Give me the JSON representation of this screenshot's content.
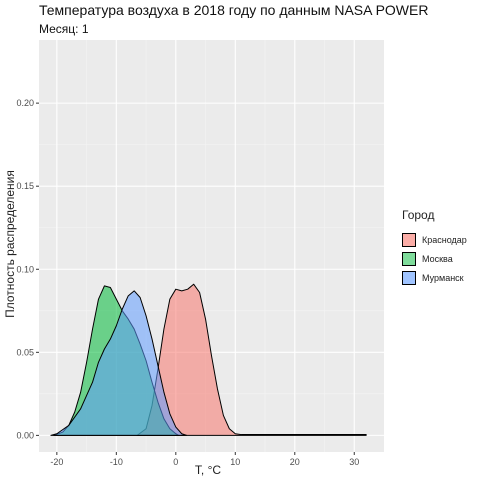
{
  "title": "Температура воздуха в 2018 году по данным NASA POWER",
  "subtitle": "Месяц: 1",
  "chart_data": {
    "type": "area",
    "title": "Температура воздуха в 2018 году по данным NASA POWER",
    "subtitle": "Месяц: 1",
    "xlabel": "T, °C",
    "ylabel": "Плотность распределения",
    "xlim": [
      -23,
      35
    ],
    "ylim": [
      -0.01,
      0.238
    ],
    "x_ticks": [
      -20,
      -10,
      0,
      10,
      20,
      30
    ],
    "x_tick_labels": [
      "-20",
      "-10",
      "0",
      "10",
      "20",
      "30"
    ],
    "y_ticks": [
      0.0,
      0.05,
      0.1,
      0.15,
      0.2
    ],
    "y_tick_labels": [
      "0.00",
      "0.05",
      "0.10",
      "0.15",
      "0.20"
    ],
    "grid": true,
    "legend_position": "right",
    "legend_title": "Город",
    "series": [
      {
        "name": "Краснодар",
        "color": "#F8766D",
        "x": [
          -6.5,
          -5,
          -4,
          -3,
          -2,
          -1,
          0,
          1,
          2,
          3,
          4,
          5,
          6,
          7,
          8,
          9,
          10,
          11,
          15,
          20,
          25,
          30,
          32
        ],
        "y": [
          0.0,
          0.004,
          0.018,
          0.04,
          0.064,
          0.082,
          0.088,
          0.087,
          0.088,
          0.091,
          0.086,
          0.07,
          0.048,
          0.028,
          0.012,
          0.004,
          0.001,
          0.0005,
          0.0005,
          0.0005,
          0.0005,
          0.0005,
          0.0005
        ]
      },
      {
        "name": "Москва",
        "color": "#00BA38",
        "x": [
          -20.5,
          -19,
          -18,
          -17,
          -16,
          -15,
          -14,
          -13,
          -12,
          -11,
          -10,
          -9,
          -8,
          -7,
          -6,
          -5,
          -4,
          -3,
          -2,
          -1,
          0,
          0.5
        ],
        "y": [
          0.0,
          0.002,
          0.006,
          0.014,
          0.026,
          0.044,
          0.064,
          0.082,
          0.09,
          0.089,
          0.082,
          0.075,
          0.07,
          0.064,
          0.055,
          0.045,
          0.032,
          0.02,
          0.01,
          0.004,
          0.001,
          0.0
        ]
      },
      {
        "name": "Мурманск",
        "color": "#619CFF",
        "x": [
          -21,
          -20,
          -18,
          -16,
          -14,
          -13,
          -12,
          -11,
          -10,
          -9,
          -8,
          -7,
          -6,
          -5,
          -4,
          -3,
          -2,
          -1,
          0,
          1,
          1.8
        ],
        "y": [
          0.0,
          0.001,
          0.006,
          0.016,
          0.032,
          0.044,
          0.052,
          0.058,
          0.066,
          0.076,
          0.084,
          0.087,
          0.083,
          0.072,
          0.058,
          0.042,
          0.026,
          0.013,
          0.005,
          0.001,
          0.0
        ]
      }
    ]
  }
}
